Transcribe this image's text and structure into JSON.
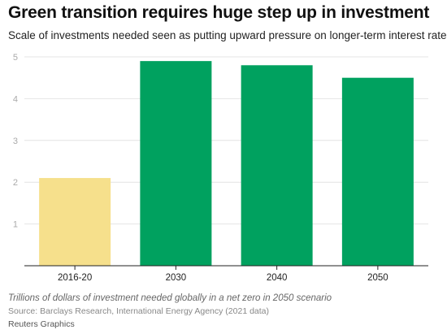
{
  "header": {
    "title": "Green transition requires huge step up in investment",
    "subtitle": "Scale of investments needed seen as putting upward pressure on longer-term interest rates"
  },
  "footer": {
    "note": "Trillions of dollars of investment needed globally in a net zero in 2050 scenario",
    "source": "Source: Barclays Research, International Energy Agency (2021 data)",
    "credit": "Reuters Graphics"
  },
  "colors": {
    "highlight_bar": "#f6e08c",
    "bar": "#00a15f",
    "grid": "#e4e4e4",
    "axis": "#222222",
    "tick_text": "#aaaaaa",
    "category_text": "#222222"
  },
  "chart_data": {
    "type": "bar",
    "categories": [
      "2016-20",
      "2030",
      "2040",
      "2050"
    ],
    "values": [
      2.1,
      4.9,
      4.8,
      4.5
    ],
    "bar_colors": [
      "#f6e08c",
      "#00a15f",
      "#00a15f",
      "#00a15f"
    ],
    "ylim": [
      0,
      5
    ],
    "yticks": [
      1,
      2,
      3,
      4,
      5
    ],
    "grid": true,
    "legend": "none"
  }
}
